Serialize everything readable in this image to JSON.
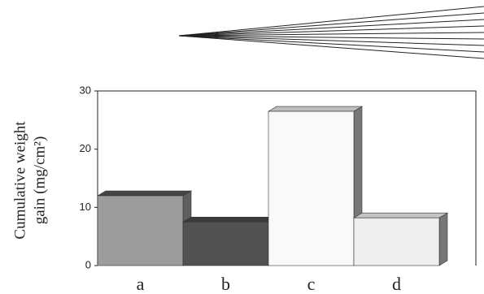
{
  "chart_data": {
    "type": "bar3d",
    "ylabel": [
      "Cumulative weight",
      "gain (mg/cm²)"
    ],
    "categories": [
      "a",
      "b",
      "c",
      "d"
    ],
    "values": [
      12,
      7.5,
      26.5,
      8.2
    ],
    "colors": [
      "#9c9c9c",
      "#525252",
      "#f9f9f9",
      "#efefef"
    ],
    "side_colors": [
      "#5e5e5e",
      "#2c2c2c",
      "#777777",
      "#777777"
    ],
    "top_colors": [
      "#444444",
      "#3a3a3a",
      "#bdbdbd",
      "#c4c4c4"
    ],
    "ylim": [
      0,
      30
    ],
    "yticks": [
      0,
      10,
      20,
      30
    ]
  }
}
